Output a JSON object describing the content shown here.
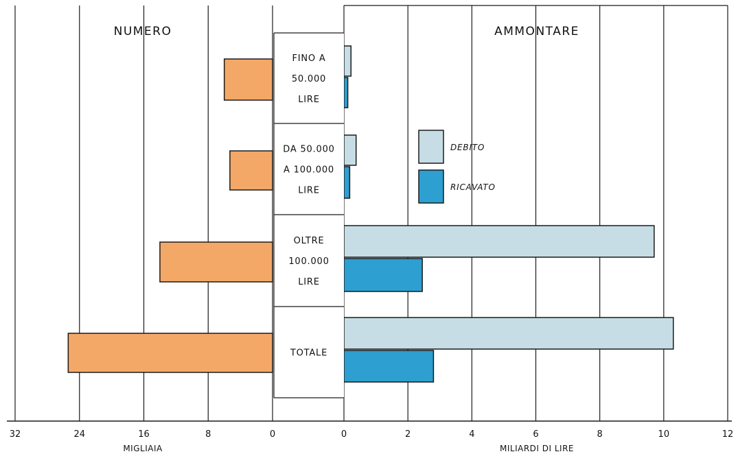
{
  "chart_data": [
    {
      "type": "bar",
      "orientation": "horizontal",
      "direction": "right-to-left",
      "title": "NUMERO",
      "xlabel": "MIGLIAIA",
      "xlim": [
        0,
        32
      ],
      "ticks": [
        "32",
        "24",
        "16",
        "8",
        "0"
      ],
      "tick_values": [
        32,
        24,
        16,
        8,
        0
      ],
      "grid": true,
      "categories": [
        "FINO A 50.000 LIRE",
        "DA 50.000 A 100.000 LIRE",
        "OLTRE 100.000 LIRE",
        "TOTALE"
      ],
      "series": [
        {
          "color": "#f4a867",
          "values": [
            6.0,
            5.3,
            14.0,
            25.4
          ]
        }
      ]
    },
    {
      "type": "bar",
      "orientation": "horizontal",
      "title": "AMMONTARE",
      "xlabel": "MILIARDI DI LIRE",
      "xlim": [
        0,
        12
      ],
      "ticks": [
        "0",
        "2",
        "4",
        "6",
        "8",
        "10",
        "12"
      ],
      "tick_values": [
        0,
        2,
        4,
        6,
        8,
        10,
        12
      ],
      "grid": true,
      "categories": [
        "FINO A 50.000 LIRE",
        "DA 50.000 A 100.000 LIRE",
        "OLTRE 100.000 LIRE",
        "TOTALE"
      ],
      "legend_position": "upper-center",
      "series": [
        {
          "name": "DEBITO",
          "color": "#c7dde6",
          "values": [
            0.22,
            0.38,
            9.7,
            10.3
          ]
        },
        {
          "name": "RICAVATO",
          "color": "#2d9fd0",
          "values": [
            0.12,
            0.18,
            2.45,
            2.8
          ]
        }
      ]
    }
  ],
  "category_labels": [
    [
      "FINO A",
      "50.000",
      "LIRE"
    ],
    [
      "DA 50.000",
      "A 100.000",
      "LIRE"
    ],
    [
      "OLTRE",
      "100.000",
      "LIRE"
    ],
    [
      "TOTALE"
    ]
  ]
}
